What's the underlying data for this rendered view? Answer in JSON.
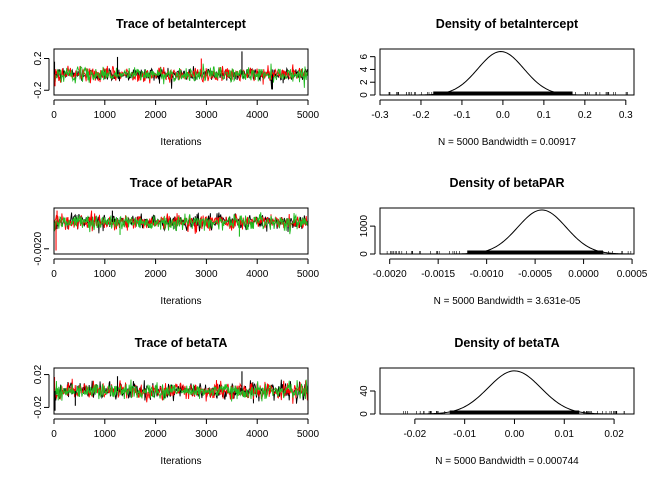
{
  "chart_data": [
    {
      "type": "line",
      "title": "Trace of betaIntercept",
      "xlabel": "Iterations",
      "ylabel": "",
      "xlim": [
        0,
        5000
      ],
      "ylim": [
        -0.26,
        0.32
      ],
      "x_ticks": [
        0,
        1000,
        2000,
        3000,
        4000,
        5000
      ],
      "y_ticks": [
        -0.2,
        0.2
      ],
      "y_tick_labels": [
        "-0.2",
        "0.2"
      ],
      "series": [
        {
          "color": "#000000",
          "center": 0.0,
          "spread": 0.045,
          "max": 0.28,
          "min": -0.2
        },
        {
          "color": "#ff0000",
          "center": 0.0,
          "spread": 0.045,
          "max": 0.22,
          "min": -0.18
        },
        {
          "color": "#22bb22",
          "center": 0.0,
          "spread": 0.045,
          "max": 0.2,
          "min": -0.17
        }
      ],
      "spikes": [
        {
          "series": 0,
          "x": 3700,
          "y": 0.29
        },
        {
          "series": 0,
          "x": 1250,
          "y": 0.22
        },
        {
          "series": 0,
          "x": 4300,
          "y": -0.19
        },
        {
          "series": 1,
          "x": 2900,
          "y": 0.2
        },
        {
          "series": 0,
          "x": 10,
          "y": 0.16
        },
        {
          "series": 1,
          "x": 20,
          "y": -0.15
        }
      ]
    },
    {
      "type": "area",
      "title": "Density of betaIntercept",
      "xlabel": "N = 5000   Bandwidth = 0.00917",
      "ylabel": "",
      "xlim": [
        -0.3,
        0.32
      ],
      "ylim": [
        0,
        7.2
      ],
      "x_ticks": [
        -0.3,
        -0.2,
        -0.1,
        0.0,
        0.1,
        0.2,
        0.3
      ],
      "x_tick_labels": [
        "-0.3",
        "-0.2",
        "-0.1",
        "0.0",
        "0.1",
        "0.2",
        "0.3"
      ],
      "y_ticks": [
        0,
        2,
        4,
        6
      ],
      "y_tick_labels": [
        "0",
        "2",
        "4",
        "6"
      ],
      "density": {
        "mean": -0.005,
        "sd": 0.056,
        "peak": 6.8
      },
      "rug_range": [
        -0.28,
        0.31
      ],
      "rug_core": [
        -0.17,
        0.17
      ]
    },
    {
      "type": "line",
      "title": "Trace of betaPAR",
      "xlabel": "Iterations",
      "ylabel": "",
      "xlim": [
        0,
        5000
      ],
      "ylim": [
        -0.0023,
        0.00035
      ],
      "x_ticks": [
        0,
        1000,
        2000,
        3000,
        4000,
        5000
      ],
      "y_ticks": [
        -0.002
      ],
      "y_tick_labels": [
        "-0.0020"
      ],
      "series": [
        {
          "color": "#000000",
          "center": -0.00045,
          "spread": 0.00022,
          "max": 0.0002,
          "min": -0.0014
        },
        {
          "color": "#ff0000",
          "center": -0.00045,
          "spread": 0.00022,
          "max": 0.0002,
          "min": -0.0013
        },
        {
          "color": "#22bb22",
          "center": -0.00045,
          "spread": 0.00022,
          "max": 0.0001,
          "min": -0.0013
        }
      ],
      "spikes": [
        {
          "series": 1,
          "x": 40,
          "y": -0.0021
        },
        {
          "series": 1,
          "x": 60,
          "y": 0.0002
        },
        {
          "series": 0,
          "x": 1150,
          "y": 0.0002
        },
        {
          "series": 2,
          "x": 3650,
          "y": -0.0013
        },
        {
          "series": 2,
          "x": 1300,
          "y": -0.0012
        }
      ]
    },
    {
      "type": "area",
      "title": "Density of betaPAR",
      "xlabel": "N = 5000   Bandwidth = 3.631e-05",
      "ylabel": "",
      "xlim": [
        -0.0021,
        0.00052
      ],
      "ylim": [
        0,
        1650
      ],
      "x_ticks": [
        -0.002,
        -0.0015,
        -0.001,
        -0.0005,
        0.0,
        0.0005
      ],
      "x_tick_labels": [
        "-0.0020",
        "-0.0015",
        "-0.0010",
        "-0.0005",
        "0.0000",
        "0.0005"
      ],
      "y_ticks": [
        0,
        1000
      ],
      "y_tick_labels": [
        "0",
        "1000"
      ],
      "density": {
        "mean": -0.00043,
        "sd": 0.00025,
        "peak": 1580
      },
      "rug_range": [
        -0.00205,
        0.0005
      ],
      "rug_core": [
        -0.0012,
        0.0002
      ]
    },
    {
      "type": "line",
      "title": "Trace of betaTA",
      "xlabel": "Iterations",
      "ylabel": "",
      "xlim": [
        0,
        5000
      ],
      "ylim": [
        -0.028,
        0.028
      ],
      "x_ticks": [
        0,
        1000,
        2000,
        3000,
        4000,
        5000
      ],
      "y_ticks": [
        -0.02,
        0.02
      ],
      "y_tick_labels": [
        "-0.02",
        "0.02"
      ],
      "series": [
        {
          "color": "#000000",
          "center": 0.0,
          "spread": 0.0052,
          "max": 0.021,
          "min": -0.02
        },
        {
          "color": "#ff0000",
          "center": 0.0,
          "spread": 0.0052,
          "max": 0.018,
          "min": -0.016
        },
        {
          "color": "#22bb22",
          "center": 0.0,
          "spread": 0.0048,
          "max": 0.015,
          "min": -0.014
        }
      ],
      "spikes": [
        {
          "series": 0,
          "x": 3700,
          "y": 0.024
        },
        {
          "series": 0,
          "x": 20,
          "y": -0.024
        },
        {
          "series": 1,
          "x": 10,
          "y": 0.017
        },
        {
          "series": 0,
          "x": 1250,
          "y": 0.018
        },
        {
          "series": 0,
          "x": 420,
          "y": -0.018
        }
      ]
    },
    {
      "type": "area",
      "title": "Density of betaTA",
      "xlabel": "N = 5000   Bandwidth = 0.000744",
      "ylabel": "",
      "xlim": [
        -0.027,
        0.024
      ],
      "ylim": [
        0,
        80
      ],
      "x_ticks": [
        -0.02,
        -0.01,
        0.0,
        0.01,
        0.02
      ],
      "x_tick_labels": [
        "-0.02",
        "-0.01",
        "0.00",
        "0.01",
        "0.02"
      ],
      "y_ticks": [
        0,
        40
      ],
      "y_tick_labels": [
        "0",
        "40"
      ],
      "density": {
        "mean": 0.0,
        "sd": 0.0053,
        "peak": 75
      },
      "rug_range": [
        -0.025,
        0.023
      ],
      "rug_core": [
        -0.013,
        0.013
      ]
    }
  ]
}
